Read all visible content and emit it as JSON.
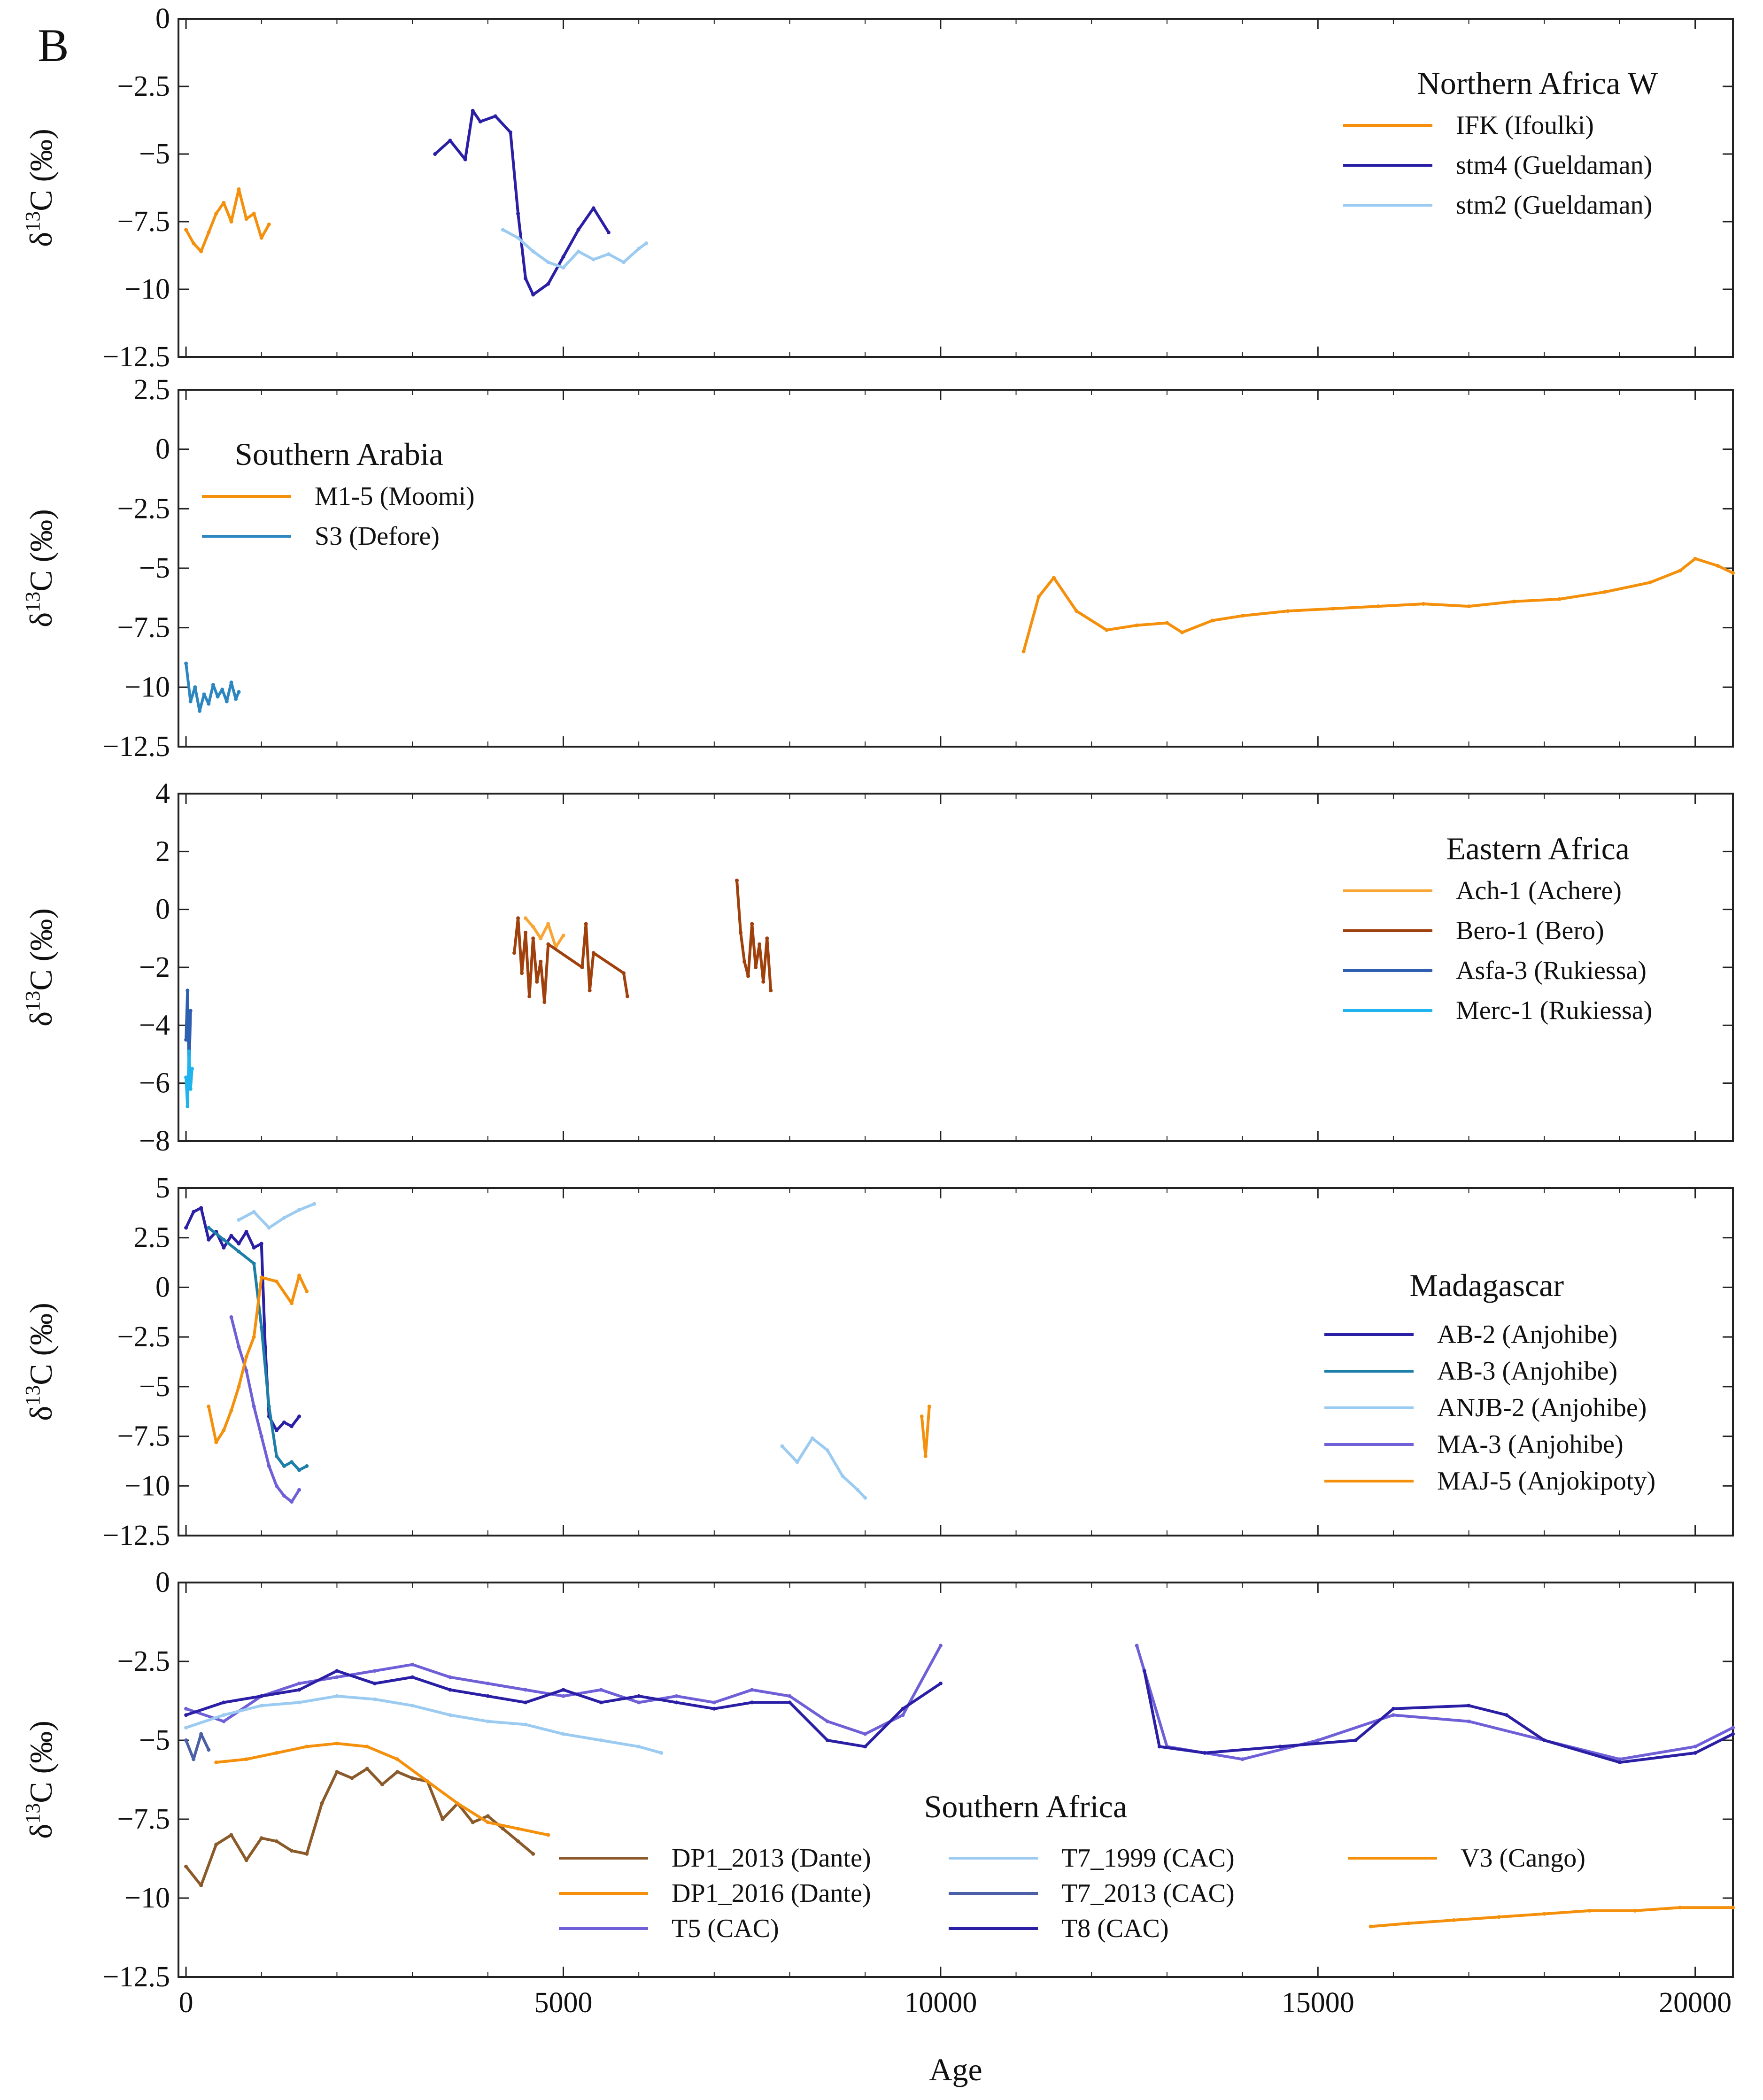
{
  "figure": {
    "panel_letter": "B",
    "x_axis_title": "Age",
    "y_axis_title": "δ13C (‰)"
  },
  "colors": {
    "orange": "#F4900C",
    "orange_light": "#F7B04B",
    "navy": "#2B1FA6",
    "purple": "#6F60D8",
    "lightblue": "#9CCBF2",
    "steel": "#2E86C1",
    "brown": "#A0410D",
    "cyan": "#1FB4EE",
    "slate": "#4A5FA5",
    "dante": "#8B5A2B",
    "gold": "#D39A10"
  },
  "chart_data": [
    {
      "type": "line",
      "title": "Northern Africa W",
      "xlabel": "",
      "ylabel": "δ13C (‰)",
      "xlim": [
        -100,
        20500
      ],
      "ylim": [
        -12.5,
        0
      ],
      "yticks": [
        0,
        -2.5,
        -5,
        -7.5,
        -10,
        -12.5
      ],
      "ytick_labels": [
        "0",
        "−2.5",
        "−5",
        "−7.5",
        "−10",
        "−12.5"
      ],
      "legend_position": "top-right",
      "series": [
        {
          "name": "IFK (Ifoulki)",
          "color": "#F4900C",
          "x": [
            0,
            100,
            200,
            300,
            400,
            500,
            600,
            700,
            800,
            900,
            1000,
            1100
          ],
          "y": [
            -7.8,
            -8.3,
            -8.6,
            -7.9,
            -7.2,
            -6.8,
            -7.5,
            -6.3,
            -7.4,
            -7.2,
            -8.1,
            -7.6
          ]
        },
        {
          "name": "stm4 (Gueldaman)",
          "color": "#2B1FA6",
          "x": [
            3300,
            3500,
            3700,
            3800,
            3900,
            4100,
            4300,
            4400,
            4500,
            4600,
            4800,
            5000,
            5200,
            5400,
            5600
          ],
          "y": [
            -5.0,
            -4.5,
            -5.2,
            -3.4,
            -3.8,
            -3.6,
            -4.2,
            -7.2,
            -9.6,
            -10.2,
            -9.8,
            -8.8,
            -7.8,
            -7.0,
            -7.9
          ]
        },
        {
          "name": "stm2 (Gueldaman)",
          "color": "#9CCBF2",
          "x": [
            4200,
            4400,
            4600,
            4800,
            5000,
            5200,
            5400,
            5600,
            5800,
            6000,
            6100
          ],
          "y": [
            -7.8,
            -8.1,
            -8.6,
            -9.0,
            -9.2,
            -8.6,
            -8.9,
            -8.7,
            -9.0,
            -8.5,
            -8.3
          ]
        }
      ]
    },
    {
      "type": "line",
      "title": "Southern Arabia",
      "xlabel": "",
      "ylabel": "δ13C (‰)",
      "xlim": [
        -100,
        20500
      ],
      "ylim": [
        -12.5,
        2.5
      ],
      "yticks": [
        2.5,
        0,
        -2.5,
        -5,
        -7.5,
        -10,
        -12.5
      ],
      "ytick_labels": [
        "2.5",
        "0",
        "−2.5",
        "−5",
        "−7.5",
        "−10",
        "−12.5"
      ],
      "legend_position": "top-left",
      "series": [
        {
          "name": "M1-5 (Moomi)",
          "color": "#F4900C",
          "x": [
            11100,
            11300,
            11500,
            11800,
            12200,
            12600,
            13000,
            13200,
            13600,
            14000,
            14600,
            15200,
            15800,
            16400,
            17000,
            17600,
            18200,
            18800,
            19400,
            19800,
            20000,
            20300,
            20500
          ],
          "y": [
            -8.5,
            -6.2,
            -5.4,
            -6.8,
            -7.6,
            -7.4,
            -7.3,
            -7.7,
            -7.2,
            -7.0,
            -6.8,
            -6.7,
            -6.6,
            -6.5,
            -6.6,
            -6.4,
            -6.3,
            -6.0,
            -5.6,
            -5.1,
            -4.6,
            -4.9,
            -5.2
          ]
        },
        {
          "name": "S3 (Defore)",
          "color": "#2E86C1",
          "x": [
            0,
            60,
            120,
            180,
            240,
            300,
            360,
            420,
            480,
            540,
            600,
            660,
            700
          ],
          "y": [
            -9.0,
            -10.6,
            -10.0,
            -11.0,
            -10.3,
            -10.7,
            -9.9,
            -10.4,
            -10.1,
            -10.6,
            -9.8,
            -10.5,
            -10.2
          ]
        }
      ]
    },
    {
      "type": "line",
      "title": "Eastern Africa",
      "xlabel": "",
      "ylabel": "δ13C (‰)",
      "xlim": [
        -100,
        20500
      ],
      "ylim": [
        -8,
        4
      ],
      "yticks": [
        4,
        2,
        0,
        -2,
        -4,
        -6,
        -8
      ],
      "ytick_labels": [
        "4",
        "2",
        "0",
        "−2",
        "−4",
        "−6",
        "−8"
      ],
      "legend_position": "top-right",
      "series": [
        {
          "name": "Ach-1 (Achere)",
          "color": "#F7A535",
          "x": [
            4500,
            4600,
            4700,
            4800,
            4900,
            5000
          ],
          "y": [
            -0.3,
            -0.6,
            -1.0,
            -0.5,
            -1.3,
            -0.9
          ]
        },
        {
          "name": "Bero-1 (Bero)",
          "color": "#A0410D",
          "x": [
            4350,
            4400,
            4450,
            4500,
            4550,
            4600,
            4650,
            4700,
            4750,
            4800,
            5250,
            5300,
            5350,
            5400,
            5800,
            5850,
            7300,
            7350,
            7400,
            7450,
            7500,
            7550,
            7600,
            7650,
            7700,
            7750
          ],
          "y": [
            -1.5,
            -0.3,
            -2.2,
            -0.8,
            -3.0,
            -1.0,
            -2.5,
            -1.8,
            -3.2,
            -1.2,
            -2.0,
            -0.5,
            -2.8,
            -1.5,
            -2.2,
            -3.0,
            1.0,
            -0.8,
            -1.8,
            -2.3,
            -0.5,
            -2.0,
            -1.2,
            -2.5,
            -1.0,
            -2.8
          ]
        },
        {
          "name": "Asfa-3 (Rukiessa)",
          "color": "#2E5FB0",
          "x": [
            0,
            20,
            40,
            60
          ],
          "y": [
            -4.5,
            -2.8,
            -5.6,
            -3.5
          ]
        },
        {
          "name": "Merc-1 (Rukiessa)",
          "color": "#1FB4EE",
          "x": [
            0,
            20,
            40,
            60,
            80
          ],
          "y": [
            -5.8,
            -6.8,
            -4.9,
            -6.2,
            -5.5
          ]
        }
      ]
    },
    {
      "type": "line",
      "title": "Madagascar",
      "xlabel": "",
      "ylabel": "δ13C (‰)",
      "xlim": [
        -100,
        20500
      ],
      "ylim": [
        -12.5,
        5
      ],
      "yticks": [
        5,
        2.5,
        0,
        -2.5,
        -5,
        -7.5,
        -10,
        -12.5
      ],
      "ytick_labels": [
        "5",
        "2.5",
        "0",
        "−2.5",
        "−5",
        "−7.5",
        "−10",
        "−12.5"
      ],
      "legend_position": "right",
      "series": [
        {
          "name": "AB-2 (Anjohibe)",
          "color": "#2B1FA6",
          "x": [
            0,
            100,
            200,
            300,
            400,
            500,
            600,
            700,
            800,
            900,
            1000,
            1050,
            1100,
            1200,
            1300,
            1400,
            1500
          ],
          "y": [
            3.0,
            3.8,
            4.0,
            2.4,
            2.8,
            2.0,
            2.6,
            2.2,
            2.8,
            2.0,
            2.2,
            -3.0,
            -6.5,
            -7.2,
            -6.8,
            -7.0,
            -6.5
          ]
        },
        {
          "name": "AB-3 (Anjohibe)",
          "color": "#1D7FA8",
          "x": [
            300,
            500,
            700,
            900,
            1000,
            1100,
            1200,
            1300,
            1400,
            1500,
            1600
          ],
          "y": [
            3.0,
            2.4,
            1.8,
            1.2,
            -2.0,
            -6.0,
            -8.5,
            -9.0,
            -8.8,
            -9.2,
            -9.0
          ]
        },
        {
          "name": "ANJB-2 (Anjohibe)",
          "color": "#9CCBF2",
          "x": [
            700,
            900,
            1100,
            1300,
            1500,
            1700,
            7900,
            8100,
            8300,
            8500,
            8700,
            8900,
            9000
          ],
          "y": [
            3.4,
            3.8,
            3.0,
            3.5,
            3.9,
            4.2,
            -8.0,
            -8.8,
            -7.6,
            -8.2,
            -9.5,
            -10.2,
            -10.6
          ]
        },
        {
          "name": "MA-3 (Anjohibe)",
          "color": "#6F60D8",
          "x": [
            600,
            700,
            800,
            900,
            1000,
            1100,
            1200,
            1300,
            1400,
            1500
          ],
          "y": [
            -1.5,
            -3.0,
            -4.2,
            -6.0,
            -7.5,
            -9.0,
            -10.0,
            -10.5,
            -10.8,
            -10.2
          ]
        },
        {
          "name": "MAJ-5 (Anjokipoty)",
          "color": "#F4900C",
          "x": [
            300,
            400,
            500,
            600,
            700,
            800,
            900,
            1000,
            1200,
            1400,
            1500,
            1600,
            9750,
            9800,
            9850
          ],
          "y": [
            -6.0,
            -7.8,
            -7.2,
            -6.2,
            -5.0,
            -3.5,
            -2.5,
            0.5,
            0.3,
            -0.8,
            0.6,
            -0.2,
            -6.5,
            -8.5,
            -6.0
          ]
        }
      ]
    },
    {
      "type": "line",
      "title": "Southern Africa",
      "xlabel": "Age",
      "ylabel": "δ13C (‰)",
      "xlim": [
        -100,
        20500
      ],
      "ylim": [
        -12.5,
        0
      ],
      "xticks": [
        0,
        5000,
        10000,
        15000,
        20000
      ],
      "xtick_labels": [
        "0",
        "5000",
        "10000",
        "15000",
        "20000"
      ],
      "yticks": [
        0,
        -2.5,
        -5,
        -7.5,
        -10,
        -12.5
      ],
      "ytick_labels": [
        "0",
        "−2.5",
        "−5",
        "−7.5",
        "−10",
        "−12.5"
      ],
      "legend_position": "bottom",
      "series": [
        {
          "name": "DP1_2013 (Dante)",
          "color": "#8B5A2B",
          "x": [
            0,
            200,
            400,
            600,
            800,
            1000,
            1200,
            1400,
            1600,
            1800,
            2000,
            2200,
            2400,
            2600,
            2800,
            3000,
            3200,
            3400,
            3600,
            3800,
            4000,
            4200,
            4400,
            4600
          ],
          "y": [
            -9.0,
            -9.6,
            -8.3,
            -8.0,
            -8.8,
            -8.1,
            -8.2,
            -8.5,
            -8.6,
            -7.0,
            -6.0,
            -6.2,
            -5.9,
            -6.4,
            -6.0,
            -6.2,
            -6.3,
            -7.5,
            -7.0,
            -7.6,
            -7.4,
            -7.8,
            -8.2,
            -8.6
          ]
        },
        {
          "name": "DP1_2016 (Dante)",
          "color": "#F4900C",
          "x": [
            400,
            800,
            1200,
            1600,
            2000,
            2400,
            2800,
            3200,
            3600,
            4000,
            4400,
            4800
          ],
          "y": [
            -5.7,
            -5.6,
            -5.4,
            -5.2,
            -5.1,
            -5.2,
            -5.6,
            -6.3,
            -7.0,
            -7.6,
            -7.8,
            -8.0
          ]
        },
        {
          "name": "T5 (CAC)",
          "color": "#6F60D8",
          "x": [
            0,
            500,
            1000,
            1500,
            2000,
            2500,
            3000,
            3500,
            4000,
            4500,
            5000,
            5500,
            6000,
            6500,
            7000,
            7500,
            8000,
            8500,
            9000,
            9500,
            10000,
            12600,
            13000,
            14000,
            15000,
            16000,
            17000,
            18000,
            19000,
            20000,
            20500
          ],
          "y": [
            -4.0,
            -4.4,
            -3.6,
            -3.2,
            -3.0,
            -2.8,
            -2.6,
            -3.0,
            -3.2,
            -3.4,
            -3.6,
            -3.4,
            -3.8,
            -3.6,
            -3.8,
            -3.4,
            -3.6,
            -4.4,
            -4.8,
            -4.2,
            -2.0,
            -2.0,
            -5.2,
            -5.6,
            -5.0,
            -4.2,
            -4.4,
            -5.0,
            -5.6,
            -5.2,
            -4.6
          ]
        },
        {
          "name": "T7_1999 (CAC)",
          "color": "#9CCBF2",
          "x": [
            0,
            500,
            1000,
            1500,
            2000,
            2500,
            3000,
            3500,
            4000,
            4500,
            5000,
            5500,
            6000,
            6300
          ],
          "y": [
            -4.6,
            -4.2,
            -3.9,
            -3.8,
            -3.6,
            -3.7,
            -3.9,
            -4.2,
            -4.4,
            -4.5,
            -4.8,
            -5.0,
            -5.2,
            -5.4
          ]
        },
        {
          "name": "T7_2013 (CAC)",
          "color": "#4A5FA5",
          "x": [
            0,
            100,
            200,
            300
          ],
          "y": [
            -5.0,
            -5.6,
            -4.8,
            -5.3
          ]
        },
        {
          "name": "T8 (CAC)",
          "color": "#2B1FA6",
          "x": [
            0,
            500,
            1000,
            1500,
            2000,
            2500,
            3000,
            3500,
            4000,
            4500,
            5000,
            5500,
            6000,
            6500,
            7000,
            7500,
            8000,
            8500,
            9000,
            9500,
            10000,
            12700,
            12900,
            13500,
            14500,
            15500,
            16000,
            17000,
            17500,
            18000,
            19000,
            20000,
            20500
          ],
          "y": [
            -4.2,
            -3.8,
            -3.6,
            -3.4,
            -2.8,
            -3.2,
            -3.0,
            -3.4,
            -3.6,
            -3.8,
            -3.4,
            -3.8,
            -3.6,
            -3.8,
            -4.0,
            -3.8,
            -3.8,
            -5.0,
            -5.2,
            -4.0,
            -3.2,
            -2.8,
            -5.2,
            -5.4,
            -5.2,
            -5.0,
            -4.0,
            -3.9,
            -4.2,
            -5.0,
            -5.7,
            -5.4,
            -4.8
          ]
        },
        {
          "name": "V3 (Cango)",
          "color": "#F4900C",
          "x": [
            15700,
            16200,
            16800,
            17400,
            18000,
            18600,
            19200,
            19800,
            20500
          ],
          "y": [
            -10.9,
            -10.8,
            -10.7,
            -10.6,
            -10.5,
            -10.4,
            -10.4,
            -10.3,
            -10.3
          ]
        }
      ]
    }
  ]
}
